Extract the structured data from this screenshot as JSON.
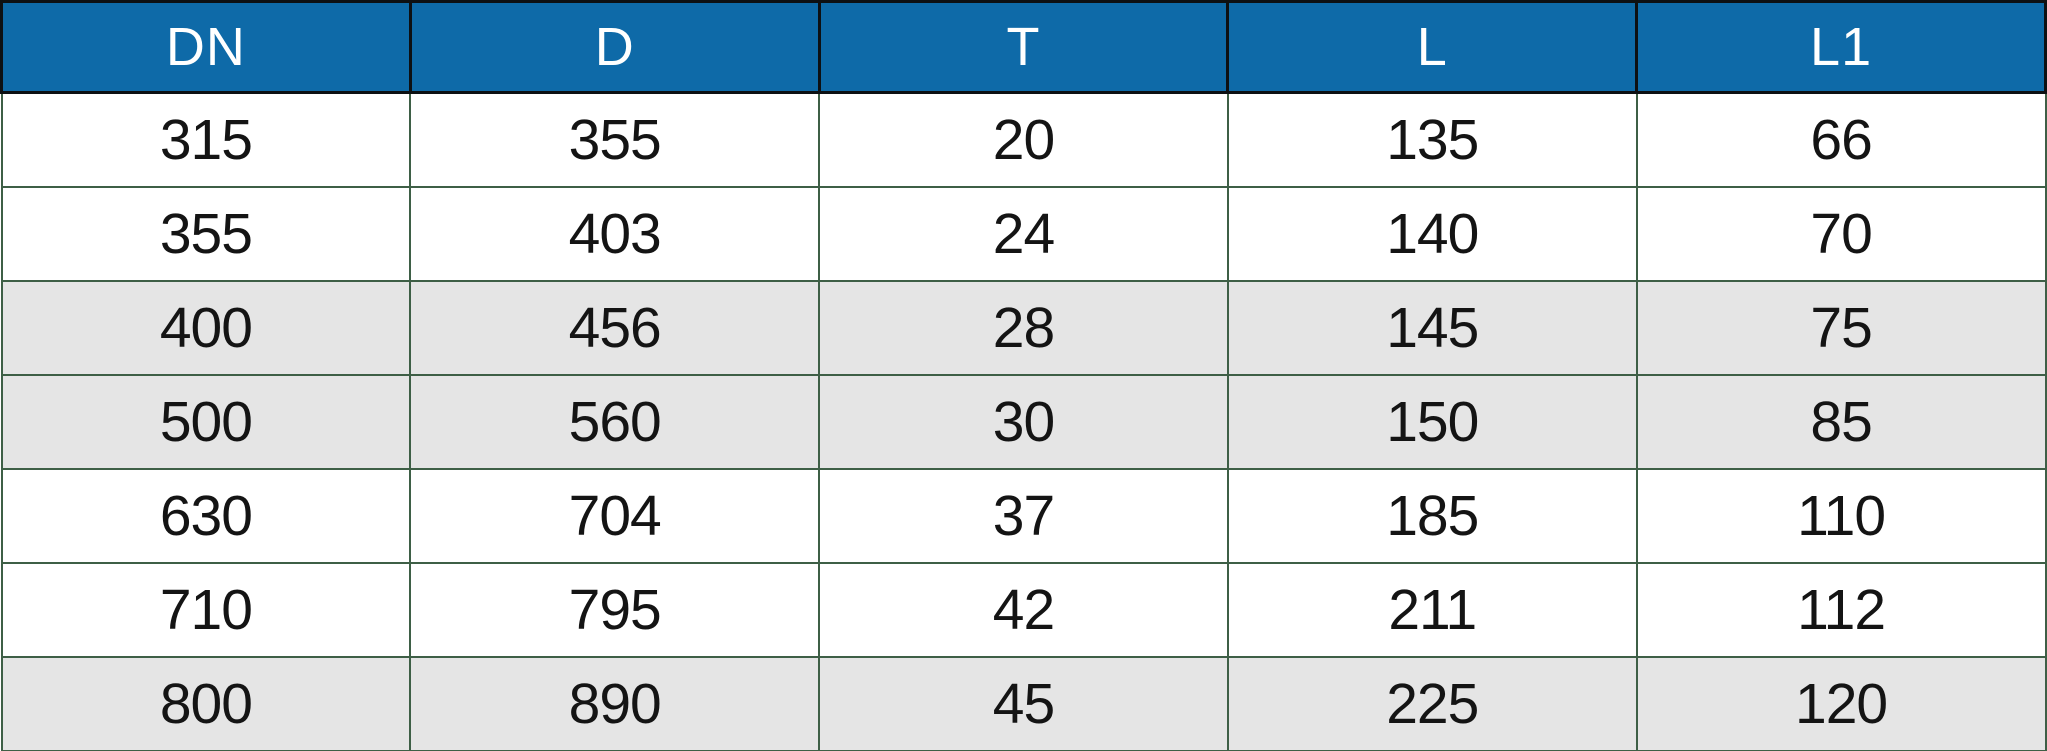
{
  "table": {
    "columns": [
      "DN",
      "D",
      "T",
      "L",
      "L1"
    ],
    "rows": [
      {
        "shaded": false,
        "cells": [
          "315",
          "355",
          "20",
          "135",
          "66"
        ]
      },
      {
        "shaded": false,
        "cells": [
          "355",
          "403",
          "24",
          "140",
          "70"
        ]
      },
      {
        "shaded": true,
        "cells": [
          "400",
          "456",
          "28",
          "145",
          "75"
        ]
      },
      {
        "shaded": true,
        "cells": [
          "500",
          "560",
          "30",
          "150",
          "85"
        ]
      },
      {
        "shaded": false,
        "cells": [
          "630",
          "704",
          "37",
          "185",
          "110"
        ]
      },
      {
        "shaded": false,
        "cells": [
          "710",
          "795",
          "42",
          "211",
          "112"
        ]
      },
      {
        "shaded": true,
        "cells": [
          "800",
          "890",
          "45",
          "225",
          "120"
        ]
      }
    ],
    "colors": {
      "header_bg": "#0e6aa8",
      "header_text": "#ffffff",
      "shaded_row_bg": "#e5e5e5",
      "grid_border": "#3e5f46",
      "header_border": "#0d1013",
      "cell_text": "#141414"
    }
  },
  "chart_data": {
    "type": "table",
    "columns": [
      "DN",
      "D",
      "T",
      "L",
      "L1"
    ],
    "rows": [
      [
        315,
        355,
        20,
        135,
        66
      ],
      [
        355,
        403,
        24,
        140,
        70
      ],
      [
        400,
        456,
        28,
        145,
        75
      ],
      [
        500,
        560,
        30,
        150,
        85
      ],
      [
        630,
        704,
        37,
        185,
        110
      ],
      [
        710,
        795,
        42,
        211,
        112
      ],
      [
        800,
        890,
        45,
        225,
        120
      ]
    ]
  }
}
